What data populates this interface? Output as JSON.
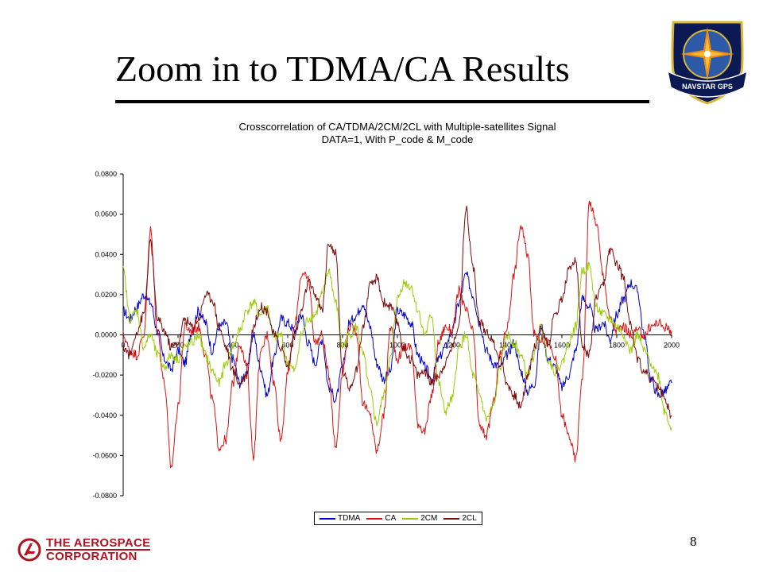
{
  "slide": {
    "title": "Zoom in to TDMA/CA Results",
    "page_number": "8",
    "logo_text": "NAVSTAR GPS",
    "company_line1": "THE AEROSPACE",
    "company_line2": "CORPORATION"
  },
  "chart_data": {
    "type": "line",
    "title": "Crosscorrelation of CA/TDMA/2CM/2CL with Multiple-satellites Signal",
    "subtitle": "DATA=1, With P_code & M_code",
    "xlim": [
      0,
      2000
    ],
    "ylim": [
      -0.08,
      0.08
    ],
    "x_ticks": [
      "0",
      "200",
      "400",
      "600",
      "800",
      "1000",
      "1200",
      "1400",
      "1600",
      "1800",
      "2000"
    ],
    "y_ticks": [
      "0.0800",
      "0.0600",
      "0.0400",
      "0.0200",
      "0.0000",
      "-0.0200",
      "-0.0400",
      "-0.0600",
      "-0.0800"
    ],
    "legend_position": "bottom",
    "x": [
      0,
      25,
      50,
      75,
      100,
      125,
      150,
      175,
      200,
      225,
      250,
      275,
      300,
      325,
      350,
      375,
      400,
      425,
      450,
      475,
      500,
      525,
      550,
      575,
      600,
      625,
      650,
      675,
      700,
      725,
      750,
      775,
      800,
      825,
      850,
      875,
      900,
      925,
      950,
      975,
      1000,
      1025,
      1050,
      1075,
      1100,
      1125,
      1150,
      1175,
      1200,
      1225,
      1250,
      1275,
      1300,
      1325,
      1350,
      1375,
      1400,
      1425,
      1450,
      1475,
      1500,
      1525,
      1550,
      1575,
      1600,
      1625,
      1650,
      1675,
      1700,
      1725,
      1750,
      1775,
      1800,
      1825,
      1850,
      1875,
      1900,
      1925,
      1950,
      1975,
      2000
    ],
    "series": [
      {
        "name": "TDMA",
        "color": "#0000cc",
        "values": [
          0.012,
          0.008,
          0.014,
          0.02,
          0.016,
          0.002,
          -0.012,
          -0.017,
          -0.008,
          -0.014,
          0.002,
          0.012,
          0.006,
          -0.008,
          0.004,
          0.006,
          -0.012,
          -0.024,
          -0.018,
          0.0,
          -0.016,
          -0.03,
          -0.012,
          0.008,
          0.006,
          0.002,
          0.01,
          -0.004,
          -0.014,
          -0.002,
          -0.026,
          -0.032,
          -0.016,
          0.006,
          0.01,
          0.016,
          0.004,
          -0.014,
          -0.022,
          -0.018,
          0.012,
          0.01,
          0.006,
          -0.01,
          -0.016,
          -0.022,
          -0.012,
          -0.006,
          0.002,
          0.016,
          0.03,
          0.02,
          0.006,
          -0.008,
          -0.014,
          -0.016,
          -0.01,
          -0.004,
          -0.018,
          -0.028,
          -0.024,
          0.004,
          -0.012,
          -0.016,
          -0.026,
          -0.02,
          -0.008,
          0.018,
          0.014,
          0.002,
          0.006,
          -0.002,
          0.01,
          0.018,
          0.026,
          0.022,
          0.0,
          -0.022,
          -0.03,
          -0.028,
          -0.024
        ]
      },
      {
        "name": "CA",
        "color": "#dd1111",
        "values": [
          0.0,
          -0.008,
          -0.01,
          0.0,
          0.052,
          0.002,
          -0.024,
          -0.066,
          -0.036,
          0.004,
          0.002,
          0.004,
          -0.01,
          -0.032,
          -0.056,
          -0.052,
          -0.024,
          -0.004,
          -0.016,
          -0.06,
          -0.01,
          0.0,
          -0.024,
          -0.052,
          -0.02,
          0.004,
          0.03,
          0.028,
          -0.004,
          0.0,
          -0.02,
          -0.056,
          -0.018,
          0.004,
          0.002,
          -0.034,
          -0.04,
          -0.058,
          -0.04,
          0.004,
          -0.012,
          -0.006,
          -0.006,
          -0.044,
          -0.048,
          -0.03,
          -0.004,
          0.004,
          0.002,
          0.022,
          0.012,
          0.002,
          -0.046,
          -0.05,
          -0.034,
          -0.01,
          0.004,
          0.03,
          0.054,
          0.04,
          0.0,
          -0.002,
          -0.004,
          -0.012,
          -0.04,
          -0.05,
          -0.062,
          -0.02,
          0.066,
          0.056,
          0.03,
          0.008,
          0.002,
          0.004,
          0.0,
          0.002,
          0.0,
          0.004,
          0.006,
          0.004,
          0.002
        ]
      },
      {
        "name": "2CM",
        "color": "#99cc00",
        "values": [
          0.032,
          0.008,
          0.012,
          -0.006,
          0.0,
          -0.01,
          -0.016,
          -0.01,
          -0.012,
          -0.006,
          -0.004,
          0.0,
          -0.01,
          -0.018,
          -0.024,
          -0.014,
          -0.006,
          0.002,
          0.012,
          0.016,
          0.01,
          0.014,
          -0.002,
          0.0,
          -0.014,
          -0.018,
          0.0,
          0.008,
          0.01,
          0.02,
          0.032,
          0.016,
          -0.006,
          0.0,
          0.004,
          -0.01,
          -0.028,
          -0.044,
          -0.03,
          -0.012,
          0.018,
          0.026,
          0.024,
          0.012,
          0.0,
          0.01,
          -0.024,
          -0.038,
          -0.032,
          -0.006,
          0.0,
          -0.02,
          -0.03,
          -0.042,
          -0.036,
          -0.016,
          0.0,
          -0.004,
          -0.01,
          -0.02,
          -0.01,
          0.004,
          -0.012,
          -0.018,
          -0.014,
          -0.004,
          0.004,
          0.032,
          0.034,
          0.014,
          0.01,
          0.008,
          0.004,
          0.0,
          -0.008,
          0.0,
          -0.008,
          -0.014,
          -0.02,
          -0.038,
          -0.046
        ]
      },
      {
        "name": "2CL",
        "color": "#7b0a0a",
        "values": [
          -0.006,
          -0.01,
          0.002,
          0.01,
          0.046,
          0.008,
          0.002,
          -0.006,
          -0.004,
          0.008,
          0.004,
          0.008,
          0.02,
          0.018,
          0.004,
          -0.006,
          -0.018,
          -0.024,
          -0.02,
          0.004,
          0.014,
          0.012,
          0.0,
          -0.006,
          -0.016,
          0.0,
          0.012,
          0.026,
          0.02,
          0.012,
          0.046,
          0.04,
          -0.018,
          -0.026,
          -0.018,
          0.004,
          0.024,
          0.028,
          0.016,
          0.014,
          0.006,
          -0.008,
          -0.012,
          -0.02,
          -0.018,
          -0.024,
          -0.02,
          -0.014,
          -0.006,
          0.006,
          0.064,
          0.034,
          0.006,
          0.002,
          -0.004,
          -0.012,
          -0.024,
          -0.03,
          -0.036,
          -0.02,
          -0.006,
          0.004,
          -0.004,
          0.01,
          0.018,
          0.032,
          0.038,
          -0.006,
          -0.01,
          0.018,
          0.024,
          0.042,
          0.036,
          0.028,
          0.006,
          -0.012,
          -0.018,
          -0.022,
          -0.026,
          -0.032,
          -0.04
        ]
      }
    ]
  }
}
